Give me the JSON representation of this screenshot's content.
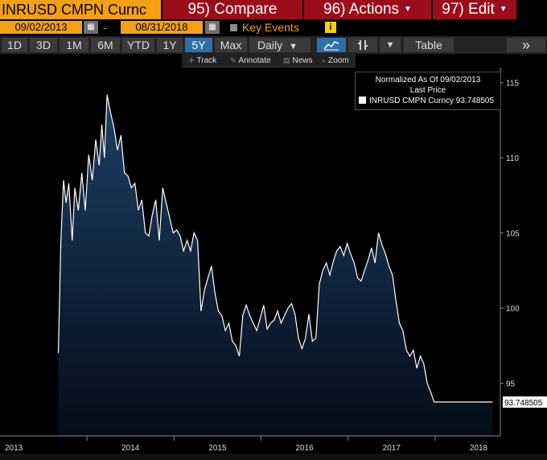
{
  "header": {
    "ticker": "INRUSD CMPN Curnc",
    "compare": "95) Compare",
    "actions": "96) Actions",
    "edit": "97) Edit"
  },
  "range": {
    "start": "09/02/2013",
    "end": "08/31/2018",
    "separator": "-",
    "key_events": "Key Events",
    "info": "i"
  },
  "periods": [
    "1D",
    "3D",
    "1M",
    "6M",
    "YTD",
    "1Y",
    "5Y",
    "Max"
  ],
  "active_period": "5Y",
  "toolbar": {
    "frequency": "Daily",
    "table": "Table",
    "more": "»"
  },
  "tools": {
    "track": "Track",
    "annotate": "Annotate",
    "news": "News",
    "zoom": "Zoom"
  },
  "legend": {
    "line1": "Normalized As Of 09/02/2013",
    "line2": "Last Price",
    "entry": "INRUSD CMPN Curncy 93.748505"
  },
  "colors": {
    "orange": "#f3a012",
    "red": "#9b0d1a",
    "area_top": "#1d3f66",
    "area_bottom": "#050c18",
    "line": "#ffffff"
  },
  "chart_data": {
    "type": "area",
    "title": "",
    "xlabel": "",
    "ylabel": "",
    "x_ticks": [
      "2013",
      "2014",
      "2015",
      "2016",
      "2017",
      "2018"
    ],
    "x_tick_years": [
      2013,
      2014,
      2015,
      2016,
      2017,
      2018
    ],
    "y_ticks": [
      95,
      100,
      105,
      110,
      115
    ],
    "ylim": [
      91.5,
      116
    ],
    "xlim": [
      2013.0,
      2018.75
    ],
    "last_value_label": "93.748505",
    "last_value": 93.75,
    "grid": false,
    "legend_position": "top-right",
    "series": [
      {
        "name": "INRUSD CMPN Curncy",
        "x": [
          2013.67,
          2013.7,
          2013.73,
          2013.76,
          2013.79,
          2013.83,
          2013.86,
          2013.9,
          2013.94,
          2013.98,
          2014.02,
          2014.06,
          2014.1,
          2014.14,
          2014.17,
          2014.2,
          2014.23,
          2014.27,
          2014.31,
          2014.35,
          2014.39,
          2014.43,
          2014.47,
          2014.51,
          2014.55,
          2014.59,
          2014.63,
          2014.67,
          2014.71,
          2014.75,
          2014.79,
          2014.83,
          2014.87,
          2014.91,
          2014.95,
          2014.99,
          2015.03,
          2015.07,
          2015.11,
          2015.15,
          2015.19,
          2015.23,
          2015.27,
          2015.31,
          2015.35,
          2015.39,
          2015.43,
          2015.47,
          2015.51,
          2015.55,
          2015.59,
          2015.63,
          2015.67,
          2015.71,
          2015.75,
          2015.79,
          2015.83,
          2015.87,
          2015.91,
          2015.95,
          2015.99,
          2016.03,
          2016.07,
          2016.11,
          2016.15,
          2016.19,
          2016.23,
          2016.27,
          2016.31,
          2016.35,
          2016.39,
          2016.43,
          2016.47,
          2016.51,
          2016.55,
          2016.59,
          2016.63,
          2016.67,
          2016.71,
          2016.75,
          2016.79,
          2016.83,
          2016.87,
          2016.91,
          2016.95,
          2016.99,
          2017.03,
          2017.07,
          2017.11,
          2017.15,
          2017.19,
          2017.23,
          2017.27,
          2017.31,
          2017.35,
          2017.39,
          2017.43,
          2017.47,
          2017.51,
          2017.55,
          2017.59,
          2017.63,
          2017.67,
          2017.71,
          2017.75,
          2017.79,
          2017.83,
          2017.87,
          2017.91,
          2017.95,
          2017.99,
          2018.03,
          2018.07,
          2018.11,
          2018.15,
          2018.19,
          2018.23,
          2018.27,
          2018.31,
          2018.35,
          2018.39,
          2018.43,
          2018.47,
          2018.51,
          2018.55,
          2018.59,
          2018.63,
          2018.66
        ],
        "values": [
          97.0,
          104.5,
          108.5,
          107.0,
          108.3,
          104.5,
          108.0,
          106.5,
          109.0,
          106.5,
          110.2,
          108.5,
          111.2,
          109.5,
          112.2,
          110.0,
          114.2,
          113.0,
          112.0,
          110.5,
          111.5,
          109.0,
          108.8,
          108.0,
          108.3,
          106.5,
          107.2,
          105.0,
          104.8,
          106.2,
          107.2,
          104.5,
          108.0,
          107.0,
          106.0,
          105.0,
          105.2,
          104.8,
          103.8,
          104.5,
          103.8,
          105.0,
          104.5,
          99.8,
          101.2,
          102.0,
          102.8,
          101.0,
          99.8,
          99.5,
          98.5,
          99.0,
          97.8,
          97.5,
          96.8,
          99.5,
          100.2,
          99.5,
          99.0,
          98.5,
          99.3,
          100.2,
          98.6,
          99.0,
          99.2,
          99.8,
          99.0,
          99.5,
          100.0,
          100.3,
          99.6,
          98.0,
          97.3,
          98.0,
          99.6,
          97.8,
          98.0,
          101.6,
          102.5,
          103.0,
          102.2,
          103.1,
          103.8,
          104.1,
          103.5,
          104.3,
          103.6,
          103.0,
          102.0,
          101.8,
          102.5,
          103.2,
          104.0,
          103.0,
          105.0,
          104.2,
          103.6,
          102.8,
          102.2,
          100.5,
          99.0,
          98.5,
          97.2,
          96.8,
          97.2,
          96.0,
          96.8,
          96.3,
          95.0,
          94.4,
          93.75,
          93.75,
          93.75,
          93.75,
          93.75,
          93.75,
          93.75,
          93.75,
          93.75,
          93.75,
          93.75,
          93.75,
          93.75,
          93.75,
          93.75,
          93.75,
          93.75,
          93.75
        ]
      }
    ]
  }
}
